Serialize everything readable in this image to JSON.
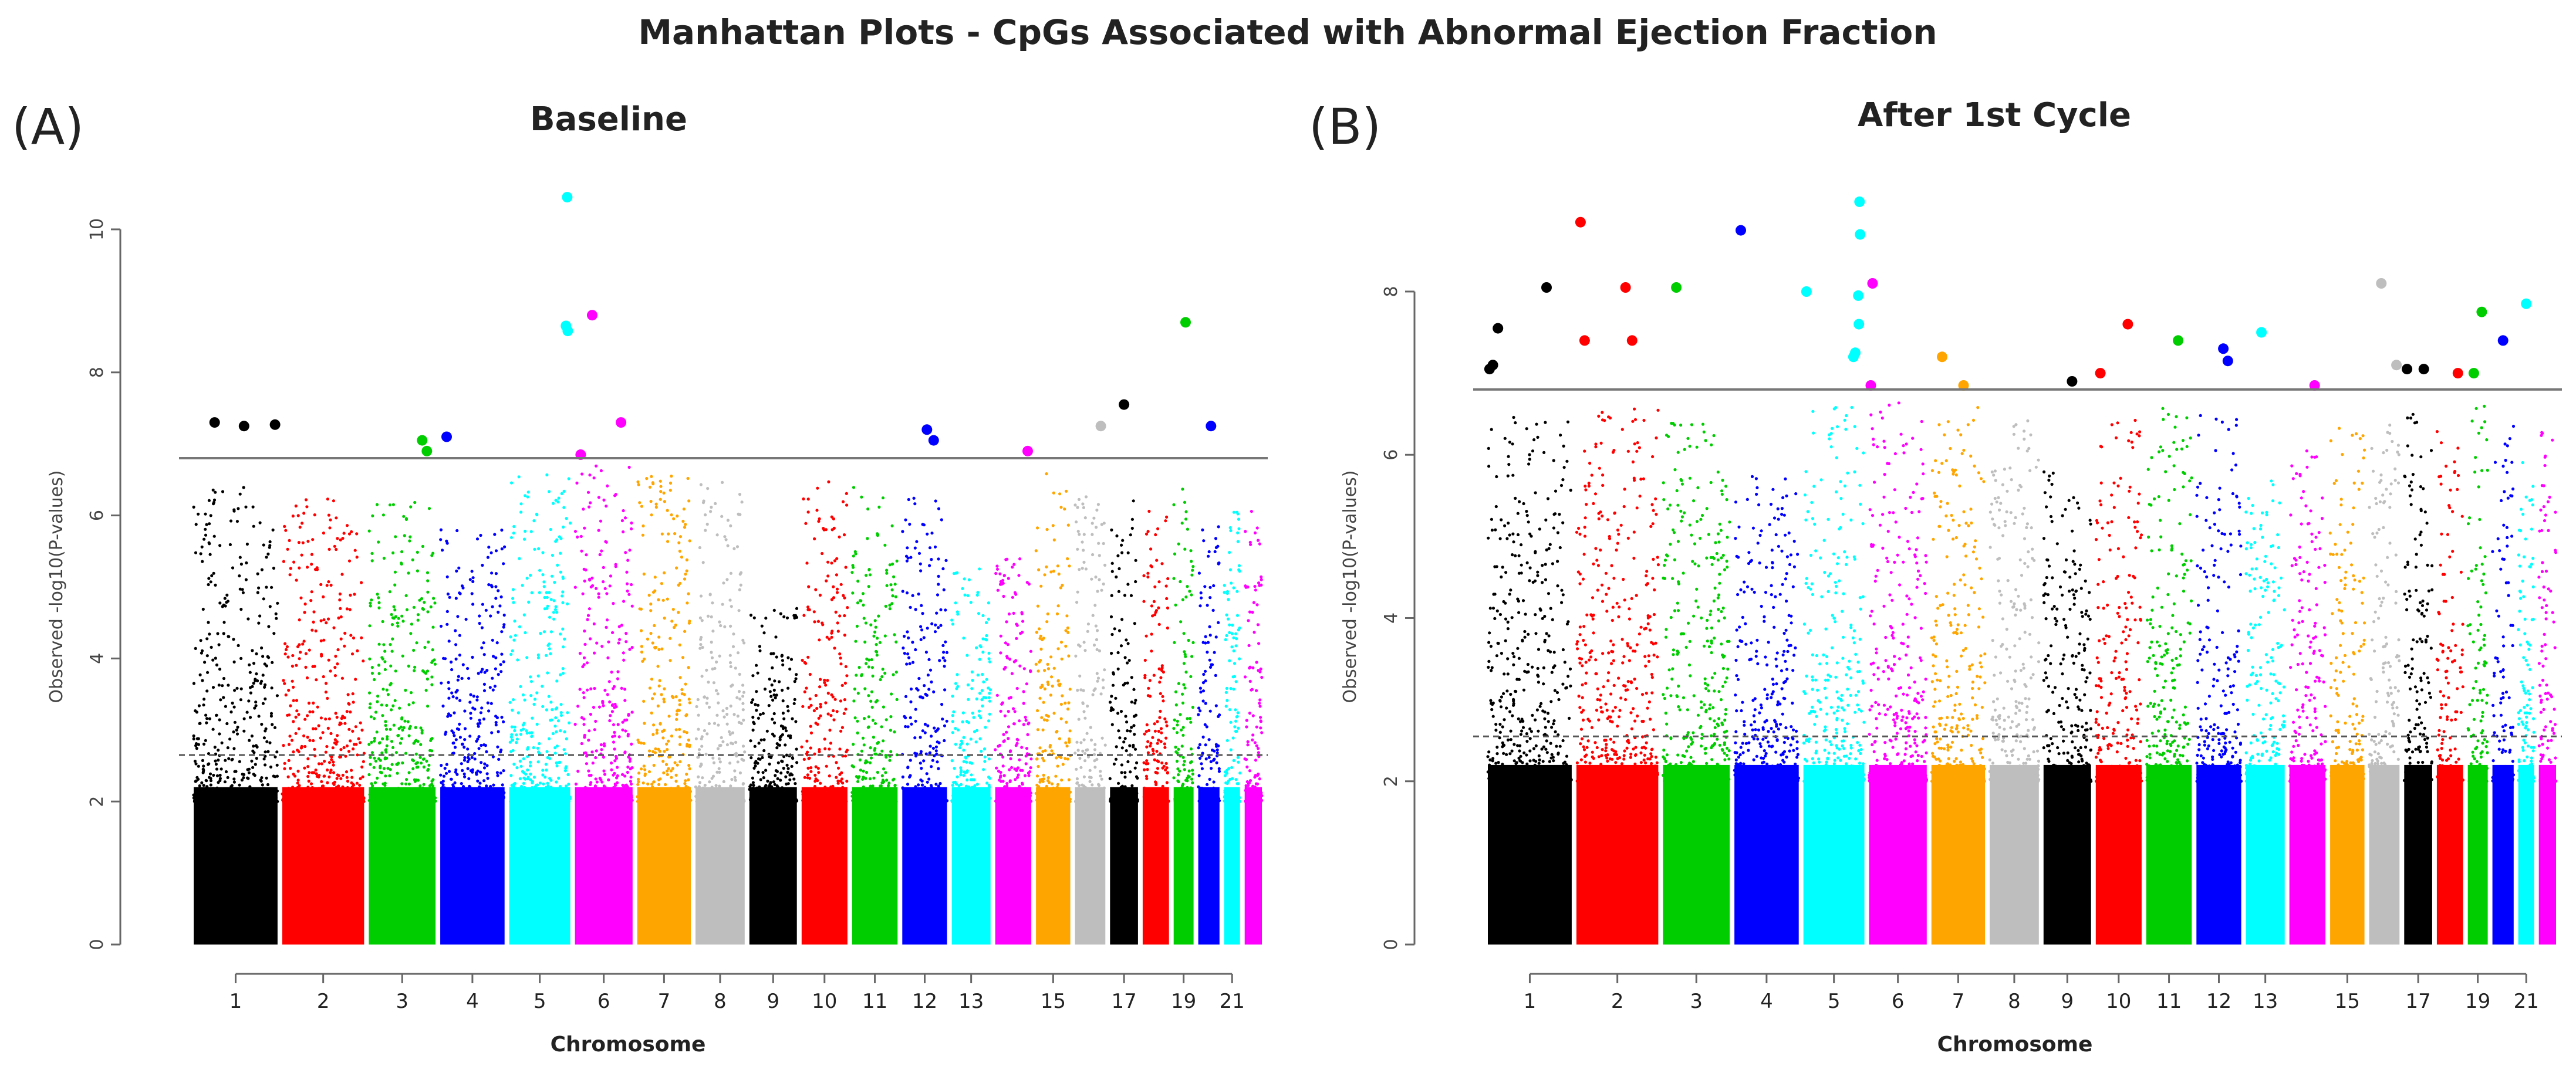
{
  "figure": {
    "title": "Manhattan Plots - CpGs Associated with Abnormal Ejection Fraction"
  },
  "chromosome_colors": [
    "#000000",
    "#ff0000",
    "#00cd00",
    "#0000ff",
    "#00ffff",
    "#ff00ff",
    "#ffa500",
    "#bebebe"
  ],
  "chart_data": [
    {
      "type": "scatter",
      "panel_label": "(A)",
      "title": "Baseline",
      "xlabel": "Chromosome",
      "ylabel": "Observed -log10(P-values)",
      "ylim": [
        0,
        10.5
      ],
      "yticks": [
        0,
        2,
        4,
        6,
        8,
        10
      ],
      "chromosome_tick_labels": [
        "1",
        "2",
        "3",
        "4",
        "5",
        "6",
        "7",
        "8",
        "9",
        "10",
        "11",
        "12",
        "13",
        "15",
        "17",
        "19",
        "21"
      ],
      "genome_wide_significance_line": 6.8,
      "suggestive_line": 2.65,
      "chromosomes": [
        {
          "chr": 1,
          "peak": 6.4
        },
        {
          "chr": 2,
          "peak": 6.3
        },
        {
          "chr": 3,
          "peak": 6.2
        },
        {
          "chr": 4,
          "peak": 5.8
        },
        {
          "chr": 5,
          "peak": 6.6
        },
        {
          "chr": 6,
          "peak": 6.7
        },
        {
          "chr": 7,
          "peak": 6.6
        },
        {
          "chr": 8,
          "peak": 6.5
        },
        {
          "chr": 9,
          "peak": 4.7
        },
        {
          "chr": 10,
          "peak": 6.5
        },
        {
          "chr": 11,
          "peak": 6.4
        },
        {
          "chr": 12,
          "peak": 6.3
        },
        {
          "chr": 13,
          "peak": 5.3
        },
        {
          "chr": 14,
          "peak": 5.4
        },
        {
          "chr": 15,
          "peak": 6.6
        },
        {
          "chr": 16,
          "peak": 6.4
        },
        {
          "chr": 17,
          "peak": 6.3
        },
        {
          "chr": 18,
          "peak": 6.1
        },
        {
          "chr": 19,
          "peak": 6.4
        },
        {
          "chr": 20,
          "peak": 6.1
        },
        {
          "chr": 21,
          "peak": 6.1
        },
        {
          "chr": 22,
          "peak": 6.2
        }
      ],
      "significant_points": [
        {
          "chr": 1,
          "pos": 0.25,
          "y": 7.3
        },
        {
          "chr": 1,
          "pos": 0.6,
          "y": 7.25
        },
        {
          "chr": 1,
          "pos": 0.97,
          "y": 7.27
        },
        {
          "chr": 3,
          "pos": 0.8,
          "y": 7.05
        },
        {
          "chr": 3,
          "pos": 0.87,
          "y": 6.9
        },
        {
          "chr": 4,
          "pos": 0.1,
          "y": 7.1
        },
        {
          "chr": 5,
          "pos": 0.95,
          "y": 10.45
        },
        {
          "chr": 5,
          "pos": 0.93,
          "y": 8.65
        },
        {
          "chr": 5,
          "pos": 0.96,
          "y": 8.58
        },
        {
          "chr": 6,
          "pos": 0.1,
          "y": 6.85
        },
        {
          "chr": 6,
          "pos": 0.3,
          "y": 8.8
        },
        {
          "chr": 6,
          "pos": 0.8,
          "y": 7.3
        },
        {
          "chr": 12,
          "pos": 0.55,
          "y": 7.2
        },
        {
          "chr": 12,
          "pos": 0.7,
          "y": 7.05
        },
        {
          "chr": 14,
          "pos": 0.9,
          "y": 6.9
        },
        {
          "chr": 16,
          "pos": 0.85,
          "y": 7.25
        },
        {
          "chr": 17,
          "pos": 0.5,
          "y": 7.55
        },
        {
          "chr": 19,
          "pos": 0.6,
          "y": 8.7
        },
        {
          "chr": 20,
          "pos": 0.6,
          "y": 7.25
        }
      ]
    },
    {
      "type": "scatter",
      "panel_label": "(B)",
      "title": "After 1st Cycle",
      "xlabel": "Chromosome",
      "ylabel": "Observed -log10(P-values)",
      "ylim": [
        0,
        9.2
      ],
      "yticks": [
        0,
        2,
        4,
        6,
        8
      ],
      "chromosome_tick_labels": [
        "1",
        "2",
        "3",
        "4",
        "5",
        "6",
        "7",
        "8",
        "9",
        "10",
        "11",
        "12",
        "13",
        "15",
        "17",
        "19",
        "21"
      ],
      "genome_wide_significance_line": 6.8,
      "suggestive_line": 2.55,
      "chromosomes": [
        {
          "chr": 1,
          "peak": 6.5
        },
        {
          "chr": 2,
          "peak": 6.6
        },
        {
          "chr": 3,
          "peak": 6.4
        },
        {
          "chr": 4,
          "peak": 5.8
        },
        {
          "chr": 5,
          "peak": 6.6
        },
        {
          "chr": 6,
          "peak": 6.7
        },
        {
          "chr": 7,
          "peak": 6.6
        },
        {
          "chr": 8,
          "peak": 6.5
        },
        {
          "chr": 9,
          "peak": 5.8
        },
        {
          "chr": 10,
          "peak": 6.5
        },
        {
          "chr": 11,
          "peak": 6.6
        },
        {
          "chr": 12,
          "peak": 6.5
        },
        {
          "chr": 13,
          "peak": 5.8
        },
        {
          "chr": 14,
          "peak": 6.1
        },
        {
          "chr": 15,
          "peak": 6.5
        },
        {
          "chr": 16,
          "peak": 6.5
        },
        {
          "chr": 17,
          "peak": 6.5
        },
        {
          "chr": 18,
          "peak": 6.3
        },
        {
          "chr": 19,
          "peak": 6.6
        },
        {
          "chr": 20,
          "peak": 6.4
        },
        {
          "chr": 21,
          "peak": 6.1
        },
        {
          "chr": 22,
          "peak": 6.3
        }
      ],
      "significant_points": [
        {
          "chr": 1,
          "pos": 0.02,
          "y": 7.05
        },
        {
          "chr": 1,
          "pos": 0.06,
          "y": 7.1
        },
        {
          "chr": 1,
          "pos": 0.12,
          "y": 7.55
        },
        {
          "chr": 1,
          "pos": 0.7,
          "y": 8.05
        },
        {
          "chr": 2,
          "pos": 0.05,
          "y": 8.85
        },
        {
          "chr": 2,
          "pos": 0.1,
          "y": 7.4
        },
        {
          "chr": 2,
          "pos": 0.6,
          "y": 8.05
        },
        {
          "chr": 2,
          "pos": 0.68,
          "y": 7.4
        },
        {
          "chr": 3,
          "pos": 0.2,
          "y": 8.05
        },
        {
          "chr": 4,
          "pos": 0.1,
          "y": 8.75
        },
        {
          "chr": 5,
          "pos": 0.05,
          "y": 8.0
        },
        {
          "chr": 5,
          "pos": 0.92,
          "y": 9.1
        },
        {
          "chr": 5,
          "pos": 0.93,
          "y": 8.7
        },
        {
          "chr": 5,
          "pos": 0.9,
          "y": 7.95
        },
        {
          "chr": 5,
          "pos": 0.91,
          "y": 7.6
        },
        {
          "chr": 5,
          "pos": 0.85,
          "y": 7.25
        },
        {
          "chr": 5,
          "pos": 0.82,
          "y": 7.2
        },
        {
          "chr": 6,
          "pos": 0.06,
          "y": 8.1
        },
        {
          "chr": 6,
          "pos": 0.03,
          "y": 6.85
        },
        {
          "chr": 7,
          "pos": 0.2,
          "y": 7.2
        },
        {
          "chr": 7,
          "pos": 0.6,
          "y": 6.85
        },
        {
          "chr": 9,
          "pos": 0.6,
          "y": 6.9
        },
        {
          "chr": 10,
          "pos": 0.1,
          "y": 7.0
        },
        {
          "chr": 10,
          "pos": 0.7,
          "y": 7.6
        },
        {
          "chr": 11,
          "pos": 0.7,
          "y": 7.4
        },
        {
          "chr": 12,
          "pos": 0.6,
          "y": 7.3
        },
        {
          "chr": 12,
          "pos": 0.7,
          "y": 7.15
        },
        {
          "chr": 13,
          "pos": 0.4,
          "y": 7.5
        },
        {
          "chr": 14,
          "pos": 0.7,
          "y": 6.85
        },
        {
          "chr": 16,
          "pos": 0.4,
          "y": 8.1
        },
        {
          "chr": 16,
          "pos": 0.9,
          "y": 7.1
        },
        {
          "chr": 17,
          "pos": 0.1,
          "y": 7.05
        },
        {
          "chr": 17,
          "pos": 0.7,
          "y": 7.05
        },
        {
          "chr": 18,
          "pos": 0.8,
          "y": 7.0
        },
        {
          "chr": 19,
          "pos": 0.3,
          "y": 7.0
        },
        {
          "chr": 19,
          "pos": 0.7,
          "y": 7.75
        },
        {
          "chr": 20,
          "pos": 0.5,
          "y": 7.4
        },
        {
          "chr": 21,
          "pos": 0.5,
          "y": 7.85
        }
      ]
    }
  ]
}
